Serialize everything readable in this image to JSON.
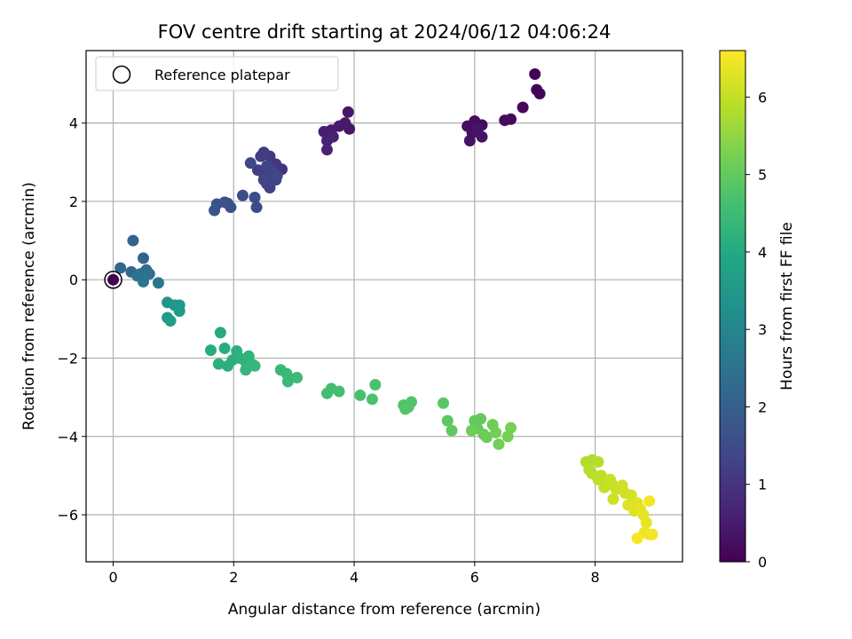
{
  "chart_data": {
    "type": "scatter",
    "title": "FOV centre drift starting at 2024/06/12 04:06:24",
    "xlabel": "Angular distance from reference (arcmin)",
    "ylabel": "Rotation from reference (arcmin)",
    "xlim": [
      -0.45,
      9.45
    ],
    "ylim": [
      -7.2,
      5.85
    ],
    "xticks": [
      0,
      2,
      4,
      6,
      8
    ],
    "yticks": [
      -6,
      -4,
      -2,
      0,
      2,
      4
    ],
    "xtick_labels": [
      "0",
      "2",
      "4",
      "6",
      "8"
    ],
    "ytick_labels": [
      "−6",
      "−4",
      "−2",
      "0",
      "2",
      "4"
    ],
    "grid": true,
    "legend": {
      "placement": "top-left",
      "entries": [
        "Reference platepar"
      ]
    },
    "reference_point": {
      "x": 0,
      "y": 0
    },
    "colorbar": {
      "label": "Hours from first FF file",
      "colormap": "viridis",
      "range": [
        0,
        6.6
      ],
      "ticks": [
        0,
        1,
        2,
        3,
        4,
        5,
        6
      ],
      "tick_labels": [
        "0",
        "1",
        "2",
        "3",
        "4",
        "5",
        "6"
      ]
    },
    "points": [
      {
        "x": 0.0,
        "y": 0.0,
        "h": 0.0
      },
      {
        "x": 7.0,
        "y": 5.25,
        "h": 0.05
      },
      {
        "x": 7.03,
        "y": 4.85,
        "h": 0.08
      },
      {
        "x": 7.08,
        "y": 4.75,
        "h": 0.1
      },
      {
        "x": 6.8,
        "y": 4.4,
        "h": 0.12
      },
      {
        "x": 6.6,
        "y": 4.1,
        "h": 0.15
      },
      {
        "x": 6.5,
        "y": 4.07,
        "h": 0.18
      },
      {
        "x": 6.12,
        "y": 3.95,
        "h": 0.2
      },
      {
        "x": 6.0,
        "y": 4.05,
        "h": 0.22
      },
      {
        "x": 5.88,
        "y": 3.92,
        "h": 0.25
      },
      {
        "x": 5.96,
        "y": 3.75,
        "h": 0.28
      },
      {
        "x": 5.92,
        "y": 3.55,
        "h": 0.3
      },
      {
        "x": 6.12,
        "y": 3.65,
        "h": 0.33
      },
      {
        "x": 6.05,
        "y": 3.85,
        "h": 0.35
      },
      {
        "x": 3.9,
        "y": 4.28,
        "h": 0.4
      },
      {
        "x": 3.92,
        "y": 3.85,
        "h": 0.42
      },
      {
        "x": 3.85,
        "y": 4.0,
        "h": 0.45
      },
      {
        "x": 3.75,
        "y": 3.92,
        "h": 0.48
      },
      {
        "x": 3.62,
        "y": 3.82,
        "h": 0.5
      },
      {
        "x": 3.5,
        "y": 3.78,
        "h": 0.55
      },
      {
        "x": 3.55,
        "y": 3.55,
        "h": 0.6
      },
      {
        "x": 3.65,
        "y": 3.65,
        "h": 0.62
      },
      {
        "x": 3.55,
        "y": 3.32,
        "h": 0.65
      },
      {
        "x": 2.8,
        "y": 2.82,
        "h": 1.0
      },
      {
        "x": 2.7,
        "y": 2.95,
        "h": 1.05
      },
      {
        "x": 2.6,
        "y": 3.15,
        "h": 1.1
      },
      {
        "x": 2.5,
        "y": 3.25,
        "h": 1.12
      },
      {
        "x": 2.45,
        "y": 3.15,
        "h": 1.15
      },
      {
        "x": 2.4,
        "y": 2.8,
        "h": 1.18
      },
      {
        "x": 2.5,
        "y": 2.7,
        "h": 1.2
      },
      {
        "x": 2.6,
        "y": 2.6,
        "h": 1.22
      },
      {
        "x": 2.55,
        "y": 2.45,
        "h": 1.25
      },
      {
        "x": 2.6,
        "y": 2.35,
        "h": 1.28
      },
      {
        "x": 2.7,
        "y": 2.55,
        "h": 1.3
      },
      {
        "x": 2.65,
        "y": 2.75,
        "h": 1.32
      },
      {
        "x": 2.55,
        "y": 2.9,
        "h": 1.35
      },
      {
        "x": 2.5,
        "y": 2.55,
        "h": 1.38
      },
      {
        "x": 2.72,
        "y": 2.65,
        "h": 1.4
      },
      {
        "x": 2.28,
        "y": 2.98,
        "h": 1.42
      },
      {
        "x": 2.35,
        "y": 2.1,
        "h": 1.5
      },
      {
        "x": 2.38,
        "y": 1.85,
        "h": 1.52
      },
      {
        "x": 2.15,
        "y": 2.15,
        "h": 1.55
      },
      {
        "x": 1.95,
        "y": 1.85,
        "h": 1.6
      },
      {
        "x": 1.9,
        "y": 1.95,
        "h": 1.62
      },
      {
        "x": 1.85,
        "y": 1.98,
        "h": 1.65
      },
      {
        "x": 1.72,
        "y": 1.93,
        "h": 1.68
      },
      {
        "x": 1.68,
        "y": 1.77,
        "h": 1.7
      },
      {
        "x": 0.33,
        "y": 1.0,
        "h": 2.1
      },
      {
        "x": 0.5,
        "y": 0.55,
        "h": 2.15
      },
      {
        "x": 0.12,
        "y": 0.3,
        "h": 2.2
      },
      {
        "x": 0.3,
        "y": 0.2,
        "h": 2.25
      },
      {
        "x": 0.45,
        "y": 0.15,
        "h": 2.3
      },
      {
        "x": 0.55,
        "y": 0.25,
        "h": 2.35
      },
      {
        "x": 0.5,
        "y": 0.05,
        "h": 2.4
      },
      {
        "x": 0.6,
        "y": 0.15,
        "h": 2.45
      },
      {
        "x": 0.4,
        "y": 0.1,
        "h": 2.5
      },
      {
        "x": 0.5,
        "y": -0.05,
        "h": 2.55
      },
      {
        "x": 0.75,
        "y": -0.08,
        "h": 2.6
      },
      {
        "x": 0.9,
        "y": -0.58,
        "h": 3.4
      },
      {
        "x": 1.02,
        "y": -0.65,
        "h": 3.45
      },
      {
        "x": 1.1,
        "y": -0.65,
        "h": 3.5
      },
      {
        "x": 1.1,
        "y": -0.8,
        "h": 3.55
      },
      {
        "x": 0.9,
        "y": -0.97,
        "h": 3.6
      },
      {
        "x": 0.95,
        "y": -1.05,
        "h": 3.65
      },
      {
        "x": 1.78,
        "y": -1.35,
        "h": 4.0
      },
      {
        "x": 1.62,
        "y": -1.8,
        "h": 4.05
      },
      {
        "x": 1.85,
        "y": -1.75,
        "h": 4.1
      },
      {
        "x": 1.98,
        "y": -2.05,
        "h": 4.12
      },
      {
        "x": 1.9,
        "y": -2.2,
        "h": 4.15
      },
      {
        "x": 1.75,
        "y": -2.15,
        "h": 4.18
      },
      {
        "x": 2.05,
        "y": -1.82,
        "h": 4.2
      },
      {
        "x": 2.1,
        "y": -2.0,
        "h": 4.22
      },
      {
        "x": 2.2,
        "y": -2.1,
        "h": 4.25
      },
      {
        "x": 2.25,
        "y": -1.95,
        "h": 4.28
      },
      {
        "x": 2.3,
        "y": -2.15,
        "h": 4.3
      },
      {
        "x": 2.2,
        "y": -2.3,
        "h": 4.32
      },
      {
        "x": 2.35,
        "y": -2.2,
        "h": 4.35
      },
      {
        "x": 2.78,
        "y": -2.3,
        "h": 4.4
      },
      {
        "x": 2.88,
        "y": -2.4,
        "h": 4.42
      },
      {
        "x": 2.9,
        "y": -2.6,
        "h": 4.45
      },
      {
        "x": 3.05,
        "y": -2.5,
        "h": 4.48
      },
      {
        "x": 3.55,
        "y": -2.9,
        "h": 4.55
      },
      {
        "x": 3.62,
        "y": -2.78,
        "h": 4.58
      },
      {
        "x": 3.75,
        "y": -2.85,
        "h": 4.6
      },
      {
        "x": 4.1,
        "y": -2.95,
        "h": 4.65
      },
      {
        "x": 4.3,
        "y": -3.05,
        "h": 4.68
      },
      {
        "x": 4.35,
        "y": -2.68,
        "h": 4.7
      },
      {
        "x": 4.82,
        "y": -3.2,
        "h": 4.75
      },
      {
        "x": 4.9,
        "y": -3.25,
        "h": 4.78
      },
      {
        "x": 4.95,
        "y": -3.12,
        "h": 4.8
      },
      {
        "x": 4.85,
        "y": -3.3,
        "h": 4.82
      },
      {
        "x": 5.48,
        "y": -3.15,
        "h": 4.9
      },
      {
        "x": 5.55,
        "y": -3.6,
        "h": 4.92
      },
      {
        "x": 5.62,
        "y": -3.85,
        "h": 4.95
      },
      {
        "x": 6.0,
        "y": -3.6,
        "h": 5.0
      },
      {
        "x": 6.1,
        "y": -3.55,
        "h": 5.02
      },
      {
        "x": 6.05,
        "y": -3.8,
        "h": 5.05
      },
      {
        "x": 6.15,
        "y": -3.95,
        "h": 5.08
      },
      {
        "x": 6.2,
        "y": -4.02,
        "h": 5.1
      },
      {
        "x": 5.95,
        "y": -3.85,
        "h": 5.12
      },
      {
        "x": 6.3,
        "y": -3.7,
        "h": 5.15
      },
      {
        "x": 6.35,
        "y": -3.9,
        "h": 5.18
      },
      {
        "x": 6.4,
        "y": -4.2,
        "h": 5.2
      },
      {
        "x": 6.55,
        "y": -4.0,
        "h": 5.22
      },
      {
        "x": 6.6,
        "y": -3.78,
        "h": 5.25
      },
      {
        "x": 7.85,
        "y": -4.65,
        "h": 5.8
      },
      {
        "x": 7.95,
        "y": -4.6,
        "h": 5.82
      },
      {
        "x": 8.05,
        "y": -4.65,
        "h": 5.85
      },
      {
        "x": 7.9,
        "y": -4.85,
        "h": 5.88
      },
      {
        "x": 7.95,
        "y": -4.95,
        "h": 5.9
      },
      {
        "x": 8.05,
        "y": -5.1,
        "h": 5.92
      },
      {
        "x": 8.1,
        "y": -5.0,
        "h": 5.95
      },
      {
        "x": 8.2,
        "y": -5.15,
        "h": 5.98
      },
      {
        "x": 8.15,
        "y": -5.3,
        "h": 6.0
      },
      {
        "x": 8.3,
        "y": -5.25,
        "h": 6.02
      },
      {
        "x": 8.25,
        "y": -5.1,
        "h": 6.05
      },
      {
        "x": 8.35,
        "y": -5.35,
        "h": 6.08
      },
      {
        "x": 8.3,
        "y": -5.6,
        "h": 6.1
      },
      {
        "x": 8.45,
        "y": -5.25,
        "h": 6.12
      },
      {
        "x": 8.5,
        "y": -5.45,
        "h": 6.15
      },
      {
        "x": 8.6,
        "y": -5.5,
        "h": 6.18
      },
      {
        "x": 8.55,
        "y": -5.75,
        "h": 6.25
      },
      {
        "x": 8.65,
        "y": -5.9,
        "h": 6.28
      },
      {
        "x": 8.7,
        "y": -5.7,
        "h": 6.3
      },
      {
        "x": 8.75,
        "y": -5.85,
        "h": 6.32
      },
      {
        "x": 8.8,
        "y": -6.0,
        "h": 6.35
      },
      {
        "x": 8.85,
        "y": -6.2,
        "h": 6.38
      },
      {
        "x": 8.82,
        "y": -6.45,
        "h": 6.42
      },
      {
        "x": 8.9,
        "y": -6.5,
        "h": 6.45
      },
      {
        "x": 8.95,
        "y": -6.5,
        "h": 6.5
      },
      {
        "x": 8.9,
        "y": -5.65,
        "h": 6.52
      },
      {
        "x": 8.7,
        "y": -6.6,
        "h": 6.55
      }
    ]
  }
}
